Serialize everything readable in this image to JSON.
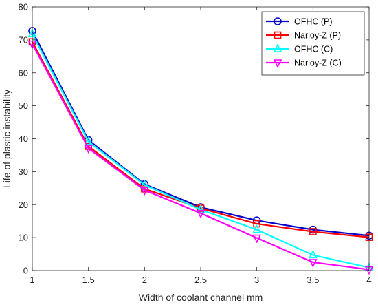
{
  "chart_data": {
    "type": "line",
    "xlabel": "Width of coolant channel mm",
    "ylabel": "Life of plastic instability",
    "xlim": [
      1,
      4
    ],
    "ylim": [
      0,
      80
    ],
    "xticks": [
      "1",
      "1.5",
      "2",
      "2.5",
      "3",
      "3.5",
      "4"
    ],
    "yticks": [
      "0",
      "10",
      "20",
      "30",
      "40",
      "50",
      "60",
      "70",
      "80"
    ],
    "grid": false,
    "legend_position": "top-right",
    "x": [
      1,
      1.5,
      2,
      2.5,
      3,
      3.5,
      4
    ],
    "series": [
      {
        "name": "OFHC (P)",
        "color": "#0000cc",
        "marker": "circle",
        "values": [
          72.7,
          39.6,
          26.2,
          19.2,
          15.2,
          12.4,
          10.6
        ]
      },
      {
        "name": "Narloy-Z (P)",
        "color": "#ff0000",
        "marker": "square",
        "values": [
          69.4,
          37.7,
          24.8,
          18.9,
          14.2,
          11.8,
          10.1
        ]
      },
      {
        "name": "OFHC (C)",
        "color": "#00ffff",
        "marker": "triangle-up",
        "values": [
          71.8,
          39.1,
          26.0,
          18.5,
          12.4,
          4.7,
          0.9
        ]
      },
      {
        "name": "Narloy-Z (C)",
        "color": "#ff00ff",
        "marker": "triangle-down",
        "values": [
          68.8,
          37.1,
          24.4,
          17.4,
          9.9,
          2.5,
          0.3
        ]
      }
    ]
  }
}
